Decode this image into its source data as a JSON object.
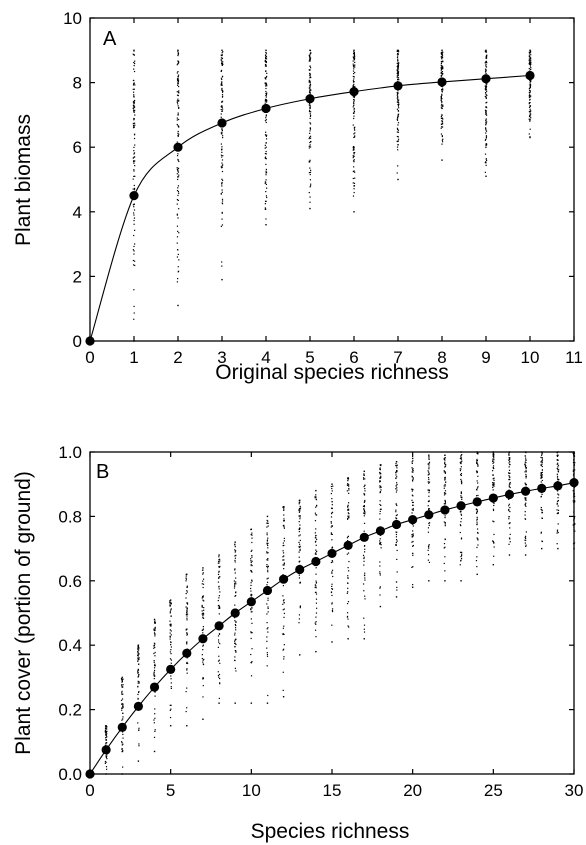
{
  "chart_data": [
    {
      "type": "scatter",
      "panel_label": "A",
      "xlabel": "Original species richness",
      "ylabel": "Plant biomass",
      "xlim": [
        0,
        11
      ],
      "ylim": [
        0,
        10
      ],
      "x_ticks": [
        0,
        1,
        2,
        3,
        4,
        5,
        6,
        7,
        8,
        9,
        10,
        11
      ],
      "y_ticks": [
        0,
        2,
        4,
        6,
        8,
        10
      ],
      "grid": false,
      "legend": "none",
      "series": [
        {
          "role": "mean",
          "x": [
            0,
            1,
            2,
            3,
            4,
            5,
            6,
            7,
            8,
            9,
            10
          ],
          "y": [
            0,
            4.5,
            6.0,
            6.75,
            7.2,
            7.5,
            7.72,
            7.9,
            8.02,
            8.12,
            8.22
          ]
        }
      ],
      "fitted_curve": "saturating curve through the mean points",
      "sample_ranges": [
        {
          "x": 1,
          "min": 0.0,
          "max": 9.0
        },
        {
          "x": 2,
          "min": 1.1,
          "max": 9.0
        },
        {
          "x": 3,
          "min": 1.9,
          "max": 9.0
        },
        {
          "x": 4,
          "min": 3.6,
          "max": 9.0
        },
        {
          "x": 5,
          "min": 4.1,
          "max": 9.0
        },
        {
          "x": 6,
          "min": 4.0,
          "max": 9.0
        },
        {
          "x": 7,
          "min": 5.0,
          "max": 9.0
        },
        {
          "x": 8,
          "min": 5.6,
          "max": 9.0
        },
        {
          "x": 9,
          "min": 5.1,
          "max": 9.0
        },
        {
          "x": 10,
          "min": 6.3,
          "max": 9.0
        }
      ]
    },
    {
      "type": "scatter",
      "panel_label": "B",
      "xlabel": "Species richness",
      "ylabel": "Plant cover (portion of ground)",
      "xlim": [
        0,
        30
      ],
      "ylim": [
        0,
        1.0
      ],
      "x_ticks": [
        0,
        5,
        10,
        15,
        20,
        25,
        30
      ],
      "y_ticks": [
        "0.0",
        "0.2",
        "0.4",
        "0.6",
        "0.8",
        "1.0"
      ],
      "grid": false,
      "legend": "none",
      "series": [
        {
          "role": "mean",
          "x": [
            0,
            1,
            2,
            3,
            4,
            5,
            6,
            7,
            8,
            9,
            10,
            11,
            12,
            13,
            14,
            15,
            16,
            17,
            18,
            19,
            20,
            21,
            22,
            23,
            24,
            25,
            26,
            27,
            28,
            29,
            30
          ],
          "y": [
            0.0,
            0.075,
            0.145,
            0.21,
            0.27,
            0.325,
            0.375,
            0.42,
            0.46,
            0.5,
            0.535,
            0.57,
            0.605,
            0.635,
            0.66,
            0.685,
            0.71,
            0.735,
            0.755,
            0.775,
            0.79,
            0.805,
            0.82,
            0.833,
            0.845,
            0.857,
            0.868,
            0.878,
            0.887,
            0.895,
            0.905
          ]
        }
      ],
      "fitted_curve": "saturating curve through the mean points",
      "sample_ranges": [
        {
          "x": 1,
          "min": 0.0,
          "max": 0.15
        },
        {
          "x": 2,
          "min": 0.0,
          "max": 0.3
        },
        {
          "x": 3,
          "min": 0.04,
          "max": 0.4
        },
        {
          "x": 4,
          "min": 0.07,
          "max": 0.48
        },
        {
          "x": 5,
          "min": 0.15,
          "max": 0.54
        },
        {
          "x": 6,
          "min": 0.15,
          "max": 0.62
        },
        {
          "x": 7,
          "min": 0.17,
          "max": 0.64
        },
        {
          "x": 8,
          "min": 0.22,
          "max": 0.68
        },
        {
          "x": 9,
          "min": 0.22,
          "max": 0.72
        },
        {
          "x": 10,
          "min": 0.22,
          "max": 0.76
        },
        {
          "x": 11,
          "min": 0.22,
          "max": 0.8
        },
        {
          "x": 12,
          "min": 0.24,
          "max": 0.83
        },
        {
          "x": 13,
          "min": 0.37,
          "max": 0.85
        },
        {
          "x": 14,
          "min": 0.38,
          "max": 0.88
        },
        {
          "x": 15,
          "min": 0.41,
          "max": 0.9
        },
        {
          "x": 16,
          "min": 0.42,
          "max": 0.92
        },
        {
          "x": 17,
          "min": 0.42,
          "max": 0.94
        },
        {
          "x": 18,
          "min": 0.52,
          "max": 0.96
        },
        {
          "x": 19,
          "min": 0.55,
          "max": 0.97
        },
        {
          "x": 20,
          "min": 0.58,
          "max": 0.98
        },
        {
          "x": 21,
          "min": 0.6,
          "max": 0.99
        },
        {
          "x": 22,
          "min": 0.6,
          "max": 0.99
        },
        {
          "x": 23,
          "min": 0.6,
          "max": 1.0
        },
        {
          "x": 24,
          "min": 0.62,
          "max": 1.0
        },
        {
          "x": 25,
          "min": 0.65,
          "max": 1.0
        },
        {
          "x": 26,
          "min": 0.68,
          "max": 1.0
        },
        {
          "x": 27,
          "min": 0.68,
          "max": 1.0
        },
        {
          "x": 28,
          "min": 0.7,
          "max": 1.0
        },
        {
          "x": 29,
          "min": 0.7,
          "max": 1.0
        },
        {
          "x": 30,
          "min": 0.7,
          "max": 1.0
        }
      ]
    }
  ]
}
